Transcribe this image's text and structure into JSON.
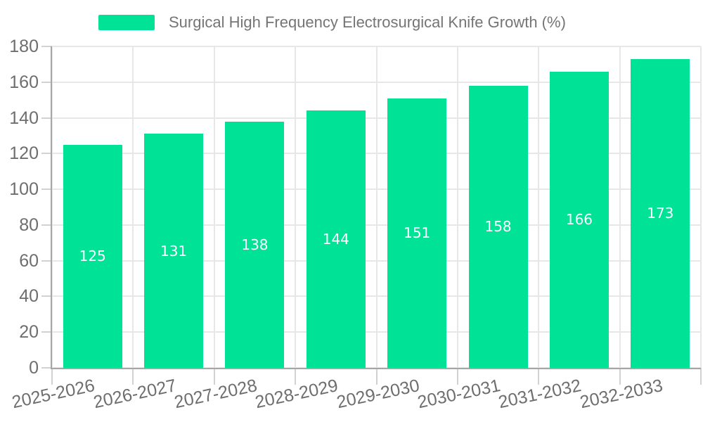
{
  "chart_data": {
    "type": "bar",
    "title": "Surgical High Frequency Electrosurgical Knife Growth (%)",
    "categories": [
      "2025-2026",
      "2026-2027",
      "2027-2028",
      "2028-2029",
      "2029-2030",
      "2030-2031",
      "2031-2032",
      "2032-2033"
    ],
    "series": [
      {
        "name": "Surgical High Frequency Electrosurgical Knife Growth (%)",
        "values": [
          125,
          131,
          138,
          144,
          151,
          158,
          166,
          173
        ]
      }
    ],
    "ylim": [
      0,
      180
    ],
    "ytick_step": 20,
    "yticks": [
      0,
      20,
      40,
      60,
      80,
      100,
      120,
      140,
      160,
      180
    ],
    "grid": true,
    "legend_position": "top",
    "value_labels": "inside-center"
  },
  "colors": {
    "bar": "#00E396",
    "grid": "#e7e7e7",
    "tick": "#d2d2d2",
    "axis": "#a6a6a6",
    "axis_label": "#6e6e6e",
    "legend_label": "#757575",
    "value_label": "#ffffff",
    "background": "#ffffff"
  }
}
